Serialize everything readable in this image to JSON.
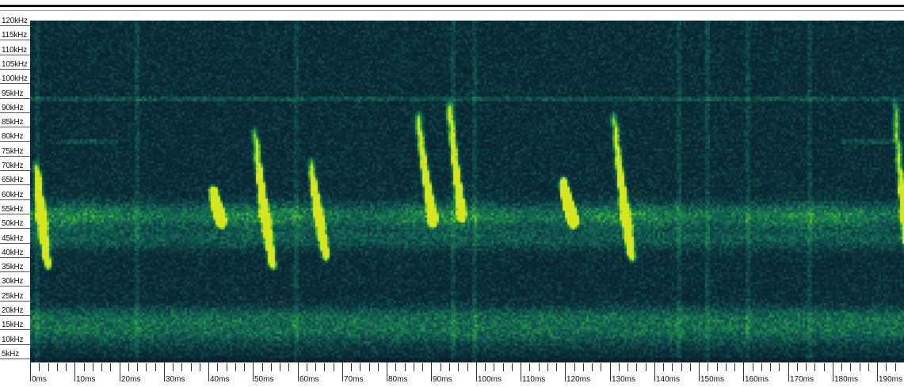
{
  "view": {
    "type": "spectrogram",
    "colormap": [
      "#071a26",
      "#0b2f3a",
      "#125a52",
      "#1d8a4a",
      "#5fbf2a",
      "#d6e61c"
    ],
    "background": "#06141d"
  },
  "frequency_axis": {
    "labels": [
      "120kHz",
      "115kHz",
      "110kHz",
      "105kHz",
      "100kHz",
      "95kHz",
      "90kHz",
      "85kHz",
      "80kHz",
      "75kHz",
      "70kHz",
      "65kHz",
      "60kHz",
      "55kHz",
      "50kHz",
      "45kHz",
      "40kHz",
      "35kHz",
      "30kHz",
      "25kHz",
      "20kHz",
      "15kHz",
      "10kHz",
      "5kHz"
    ],
    "max_khz": 120,
    "min_khz": 2
  },
  "time_axis": {
    "labels": [
      "0ms",
      "10ms",
      "20ms",
      "30ms",
      "40ms",
      "50ms",
      "60ms",
      "70ms",
      "80ms",
      "90ms",
      "100ms",
      "110ms",
      "120ms",
      "130ms",
      "140ms",
      "150ms",
      "160ms",
      "170ms",
      "180ms",
      "190ms"
    ],
    "max_ms": 196,
    "minor_per_major": 5
  },
  "calls": [
    {
      "t": 50.5,
      "f_start": 82,
      "f_end": 35,
      "duration_ms": 4.0,
      "strength": 1.0
    },
    {
      "t": 63.0,
      "f_start": 72,
      "f_end": 38,
      "duration_ms": 3.5,
      "strength": 0.65
    },
    {
      "t": 87.0,
      "f_start": 88,
      "f_end": 50,
      "duration_ms": 3.5,
      "strength": 0.85
    },
    {
      "t": 94.0,
      "f_start": 92,
      "f_end": 52,
      "duration_ms": 3.0,
      "strength": 0.8
    },
    {
      "t": 119.5,
      "f_start": 65,
      "f_end": 50,
      "duration_ms": 2.5,
      "strength": 0.9
    },
    {
      "t": 131.0,
      "f_start": 88,
      "f_end": 38,
      "duration_ms": 4.0,
      "strength": 1.0
    },
    {
      "t": 194.0,
      "f_start": 92,
      "f_end": 40,
      "duration_ms": 3.0,
      "strength": 0.7
    },
    {
      "t": 1.5,
      "f_start": 70,
      "f_end": 35,
      "duration_ms": 2.5,
      "strength": 0.8
    },
    {
      "t": 41.0,
      "f_start": 62,
      "f_end": 50,
      "duration_ms": 2.0,
      "strength": 0.6
    }
  ]
}
